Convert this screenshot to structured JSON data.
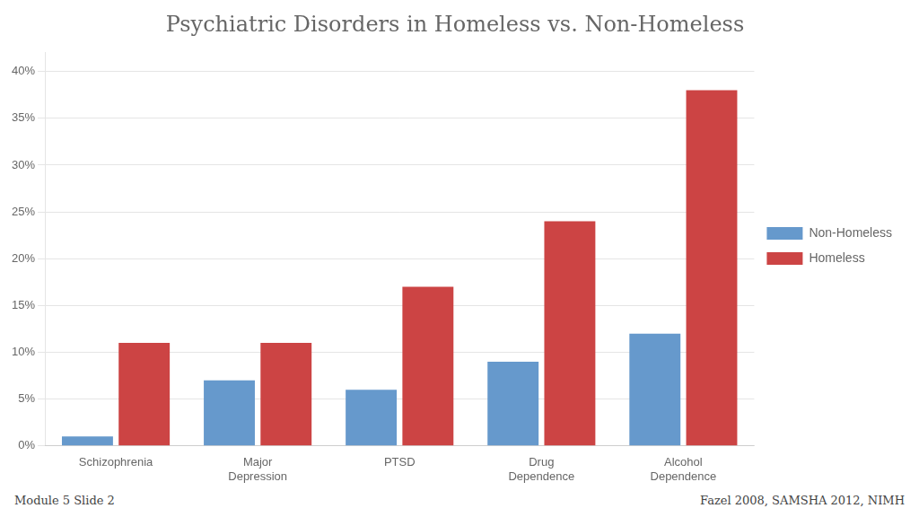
{
  "chart_data": {
    "type": "bar",
    "title": "Psychiatric Disorders in Homeless vs. Non-Homeless",
    "categories": [
      "Schizophrenia",
      "Major\nDepression",
      "PTSD",
      "Drug\nDependence",
      "Alcohol\nDependence"
    ],
    "series": [
      {
        "name": "Non-Homeless",
        "color": "#6699CC",
        "values": [
          1,
          7,
          6,
          9,
          12
        ]
      },
      {
        "name": "Homeless",
        "color": "#CC4444",
        "values": [
          11,
          11,
          17,
          24,
          38
        ]
      }
    ],
    "ylim": [
      0,
      42
    ],
    "yticks": [
      {
        "value": 0,
        "label": "0%"
      },
      {
        "value": 5,
        "label": "5%"
      },
      {
        "value": 10,
        "label": "10%"
      },
      {
        "value": 15,
        "label": "15%"
      },
      {
        "value": 20,
        "label": "20%"
      },
      {
        "value": 25,
        "label": "25%"
      },
      {
        "value": 30,
        "label": "30%"
      },
      {
        "value": 35,
        "label": "35%"
      },
      {
        "value": 40,
        "label": "40%"
      }
    ],
    "grid": true,
    "legend": "right",
    "annotations": [
      "Module 5 Slide 2",
      "Fazel 2008, SAMSHA 2012, NIMH"
    ]
  }
}
